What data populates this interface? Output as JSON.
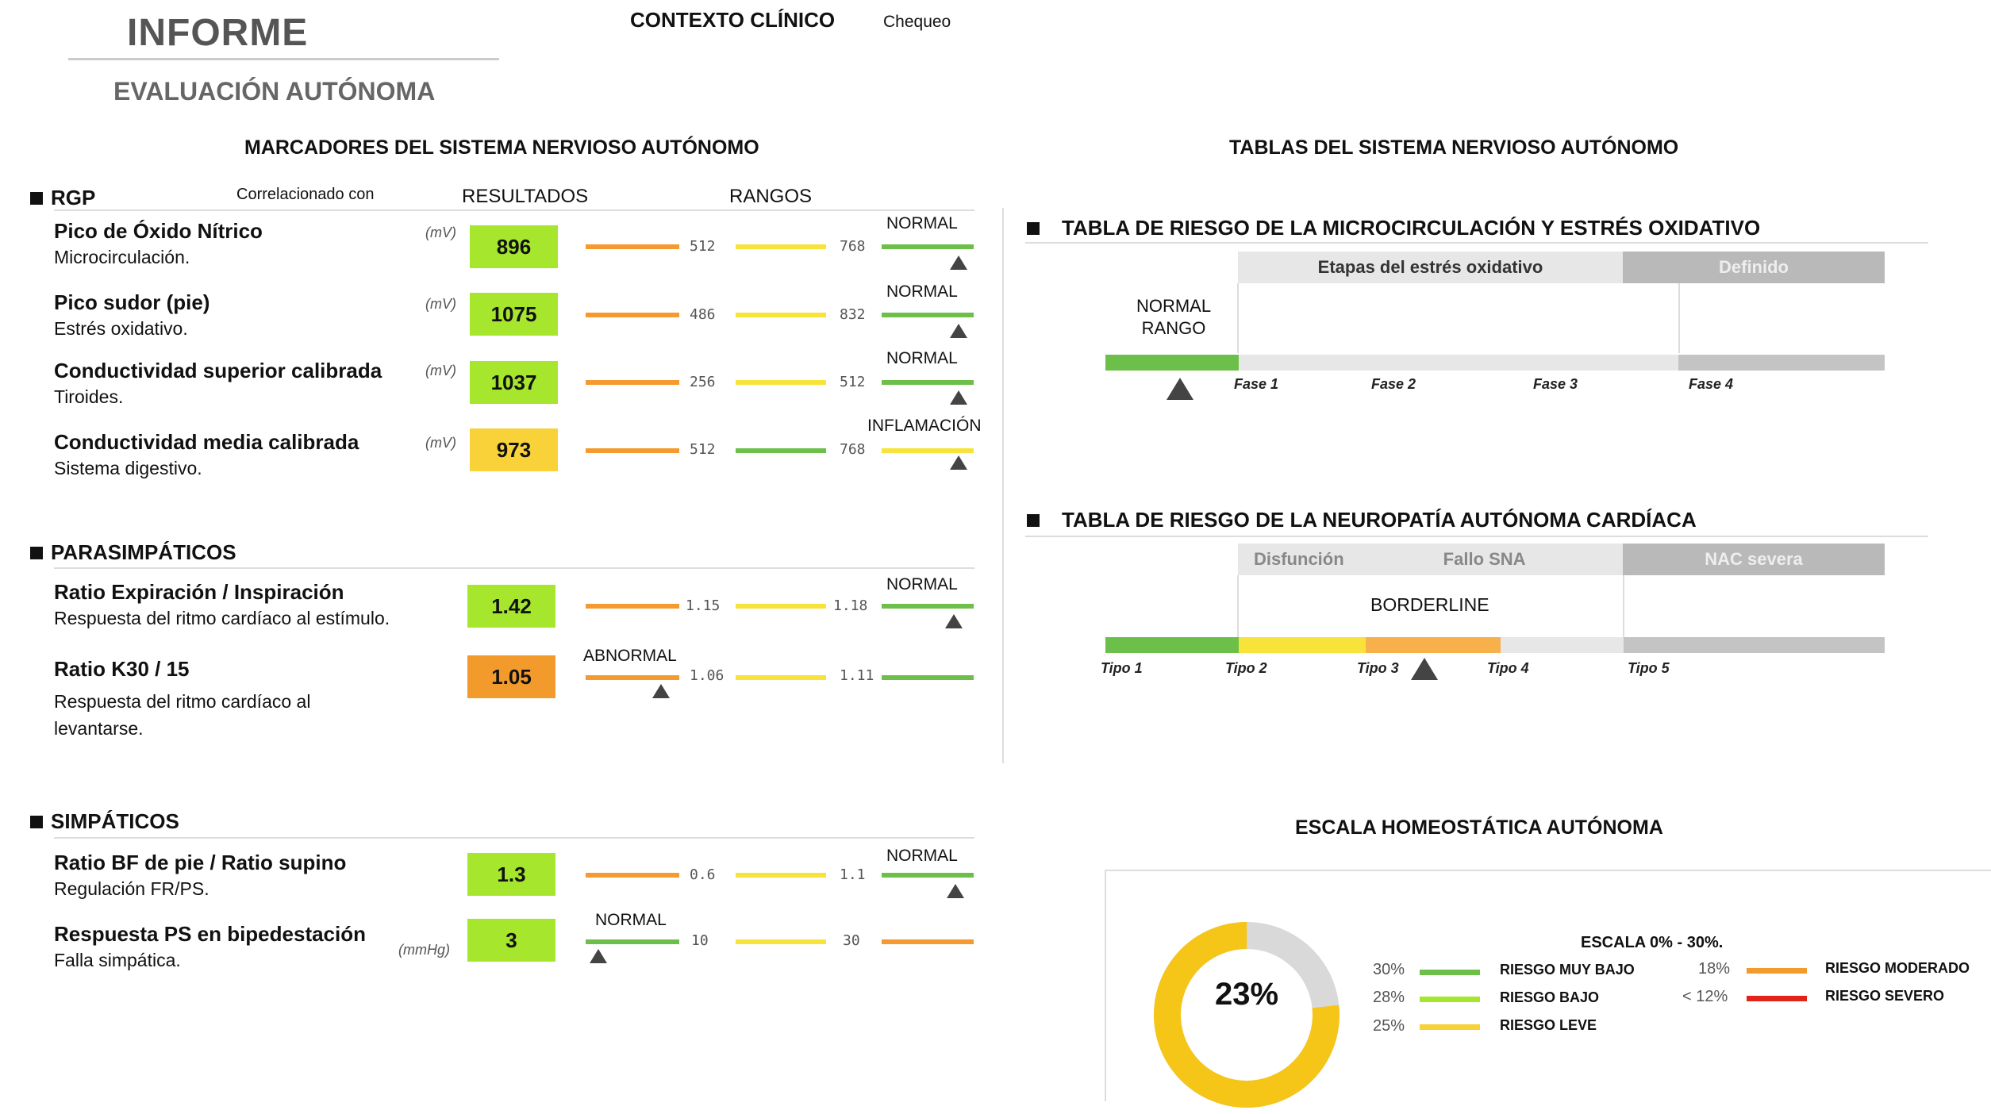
{
  "header": {
    "title": "INFORME",
    "subtitle": "EVALUACIÓN AUTÓNOMA",
    "context_label": "CONTEXTO CLÍNICO",
    "context_value": "Chequeo"
  },
  "left": {
    "title": "MARCADORES DEL SISTEMA NERVIOSO AUTÓNOMO",
    "rgp": {
      "label": "RGP",
      "correlated": "Correlacionado con",
      "results": "RESULTADOS",
      "ranges": "RANGOS",
      "items": [
        {
          "name": "Pico de Óxido Nítrico",
          "desc": "Microcirculación.",
          "unit": "(mV)",
          "value": "896",
          "n1": "512",
          "n2": "768",
          "status": "NORMAL"
        },
        {
          "name": "Pico sudor (pie)",
          "desc": "Estrés oxidativo.",
          "unit": "(mV)",
          "value": "1075",
          "n1": "486",
          "n2": "832",
          "status": "NORMAL"
        },
        {
          "name": "Conductividad superior calibrada",
          "desc": "Tiroides.",
          "unit": "(mV)",
          "value": "1037",
          "n1": "256",
          "n2": "512",
          "status": "NORMAL"
        },
        {
          "name": "Conductividad media calibrada",
          "desc": "Sistema digestivo.",
          "unit": "(mV)",
          "value": "973",
          "n1": "512",
          "n2": "768",
          "status": "INFLAMACIÓN"
        }
      ]
    },
    "para": {
      "label": "PARASIMPÁTICOS",
      "items": [
        {
          "name": "Ratio Expiración / Inspiración",
          "desc": "Respuesta del ritmo cardíaco al estímulo.",
          "value": "1.42",
          "n1": "1.15",
          "n2": "1.18",
          "status": "NORMAL"
        },
        {
          "name": "Ratio K30 / 15",
          "desc1": "Respuesta del ritmo cardíaco al",
          "desc2": "levantarse.",
          "value": "1.05",
          "n1": "1.06",
          "n2": "1.11",
          "status": "ABNORMAL"
        }
      ]
    },
    "simp": {
      "label": "SIMPÁTICOS",
      "items": [
        {
          "name": "Ratio BF de pie / Ratio supino",
          "desc": "Regulación FR/PS.",
          "value": "1.3",
          "n1": "0.6",
          "n2": "1.1",
          "status": "NORMAL"
        },
        {
          "name": "Respuesta PS en bipedestación",
          "desc": "Falla simpática.",
          "unit": "(mmHg)",
          "value": "3",
          "n1": "10",
          "n2": "30",
          "status": "NORMAL"
        }
      ]
    }
  },
  "right": {
    "title": "TABLAS DEL SISTEMA NERVIOSO AUTÓNOMO",
    "micro": {
      "title": "TABLA DE RIESGO DE LA MICROCIRCULACIÓN Y ESTRÉS OXIDATIVO",
      "band1": "Etapas del estrés oxidativo",
      "band2": "Definido",
      "normal": "NORMAL",
      "rango": "RANGO",
      "fases": [
        "Fase 1",
        "Fase 2",
        "Fase 3",
        "Fase 4"
      ]
    },
    "neuro": {
      "title": "TABLA DE RIESGO DE LA NEUROPATÍA AUTÓNOMA CARDÍACA",
      "band1": "Disfunción",
      "band2": "Fallo SNA",
      "band3": "NAC severa",
      "result": "BORDERLINE",
      "tipos": [
        "Tipo 1",
        "Tipo 2",
        "Tipo 3",
        "Tipo 4",
        "Tipo 5"
      ]
    },
    "scale": {
      "title": "ESCALA HOMEOSTÁTICA AUTÓNOMA",
      "value": "23%",
      "value_num": 23,
      "scale_label": "ESCALA 0% - 30%.",
      "legend": [
        {
          "pct": "30%",
          "label": "RIESGO MUY BAJO",
          "color": "#6cc04a"
        },
        {
          "pct": "28%",
          "label": "RIESGO BAJO",
          "color": "#a6e62c"
        },
        {
          "pct": "25%",
          "label": "RIESGO LEVE",
          "color": "#f7d135"
        },
        {
          "pct": "18%",
          "label": "RIESGO MODERADO",
          "color": "#f39a2c"
        },
        {
          "pct": "< 12%",
          "label": "RIESGO SEVERO",
          "color": "#e2231a"
        }
      ]
    }
  },
  "colors": {
    "green": "#6cc04a",
    "lime": "#a6e62c",
    "yellow": "#f7e33a",
    "amber": "#f8d238",
    "orange": "#f59a2e",
    "box_orange": "#f39a2c",
    "grey": "#c4c4c4",
    "lightgrey": "#e7e7e7"
  }
}
